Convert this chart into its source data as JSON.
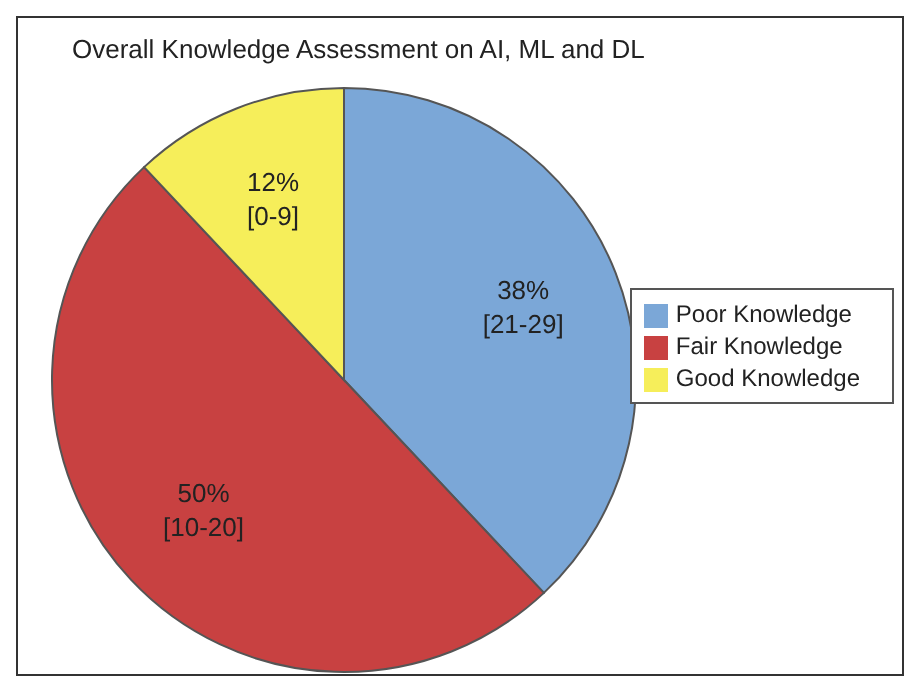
{
  "chart_data": {
    "type": "pie",
    "title": "Overall Knowledge Assessment on AI, ML and DL",
    "categories": [
      "Poor Knowledge",
      "Fair Knowledge",
      "Good Knowledge"
    ],
    "values": [
      38,
      50,
      12
    ],
    "colors": [
      "#7ba7d7",
      "#c84141",
      "#f6ee5a"
    ],
    "value_labels": [
      "38%\n[21-29]",
      "50%\n[10-20]",
      "12%\n[0-9]"
    ],
    "legend": "right"
  }
}
